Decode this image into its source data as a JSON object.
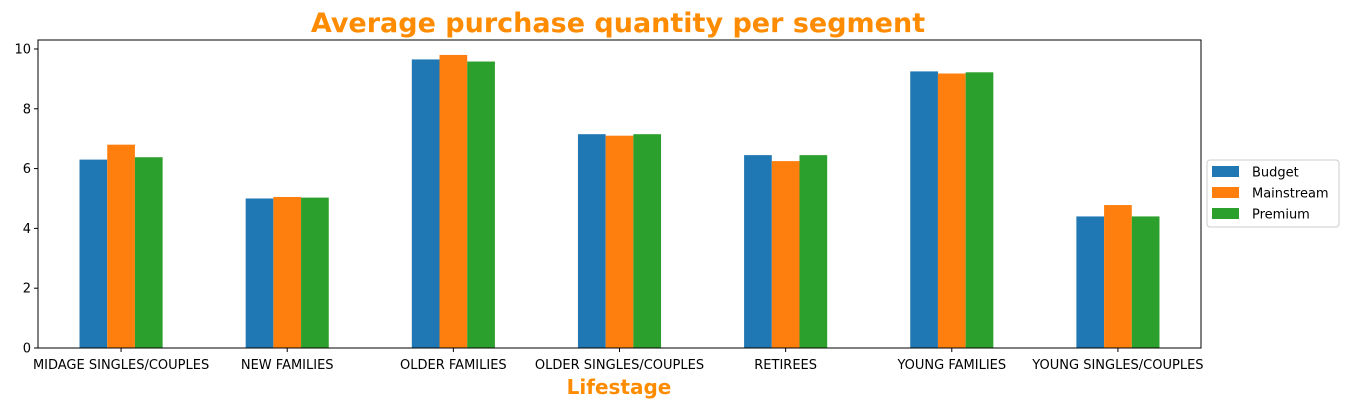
{
  "chart_data": {
    "type": "bar",
    "title": "Average purchase quantity per segment",
    "xlabel": "Lifestage",
    "ylabel": "",
    "ylim": [
      0,
      10.3
    ],
    "yticks": [
      "0",
      "2",
      "4",
      "6",
      "8",
      "10"
    ],
    "categories": [
      "MIDAGE SINGLES/COUPLES",
      "NEW FAMILIES",
      "OLDER FAMILIES",
      "OLDER SINGLES/COUPLES",
      "RETIREES",
      "YOUNG FAMILIES",
      "YOUNG SINGLES/COUPLES"
    ],
    "series": [
      {
        "name": "Budget",
        "color": "#1f77b4",
        "values": [
          6.3,
          5.0,
          9.65,
          7.15,
          6.45,
          9.25,
          4.4
        ]
      },
      {
        "name": "Mainstream",
        "color": "#ff7f0e",
        "values": [
          6.8,
          5.05,
          9.8,
          7.1,
          6.25,
          9.18,
          4.78
        ]
      },
      {
        "name": "Premium",
        "color": "#2ca02c",
        "values": [
          6.38,
          5.03,
          9.58,
          7.15,
          6.45,
          9.22,
          4.4
        ]
      }
    ],
    "title_color": "#ff8c00",
    "xlabel_color": "#ff8c00",
    "legend_position": "right",
    "grid": false
  }
}
